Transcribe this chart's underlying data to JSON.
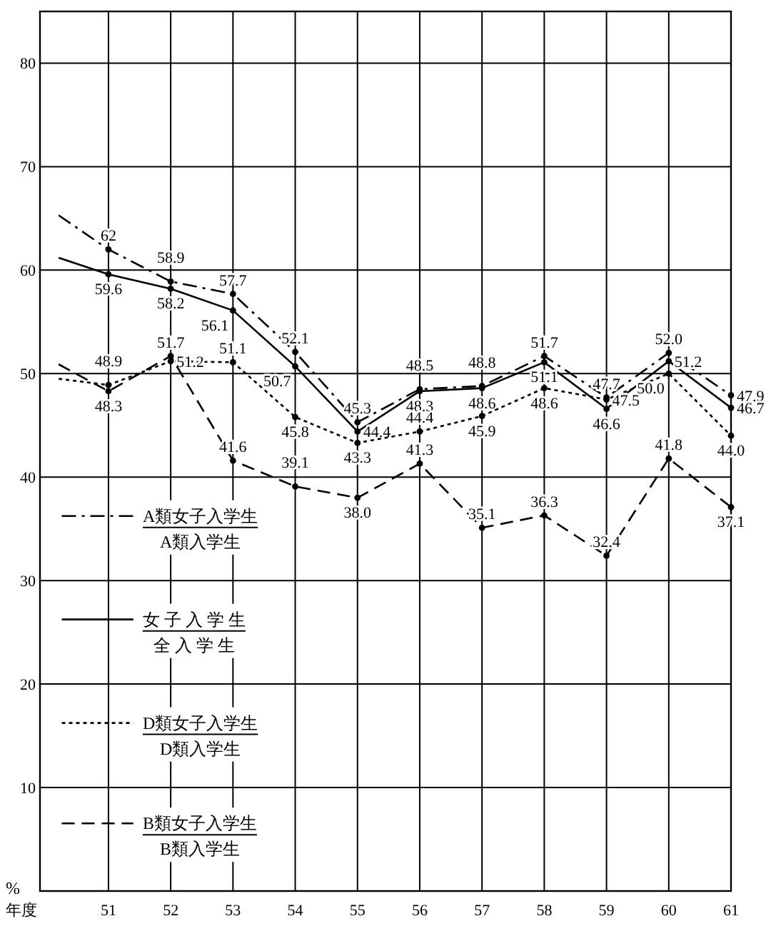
{
  "chart_data": {
    "type": "line",
    "xlabel": "年度",
    "ylabel": "%",
    "xlim": [
      49.9,
      61
    ],
    "xticks": [
      51,
      52,
      53,
      54,
      55,
      56,
      57,
      58,
      59,
      60,
      61
    ],
    "ylim": [
      0,
      85
    ],
    "yticks": [
      10,
      20,
      30,
      40,
      50,
      60,
      70,
      80
    ],
    "grid": true,
    "legend": "left",
    "marker": "circle",
    "annotations": [
      "A類入学生",
      "全 入 学 生",
      "D類入学生",
      "B類入学生"
    ],
    "x": [
      50.2,
      51,
      52,
      53,
      54,
      55,
      56,
      57,
      58,
      59,
      60,
      61
    ],
    "series": [
      {
        "name": "A類女子入学生",
        "color": "#000000",
        "line_style": "dashdot",
        "values": [
          65.3,
          62,
          58.9,
          57.7,
          52.1,
          45.3,
          48.5,
          48.8,
          51.7,
          47.7,
          52.0,
          47.9
        ],
        "value_labels": [
          null,
          "62",
          "58.9",
          "57.7",
          "52.1",
          "45.3",
          "48.5",
          "48.8",
          "51.7",
          "47.7",
          "52.0",
          "47.9"
        ]
      },
      {
        "name": "女 子 入 学 生",
        "color": "#000000",
        "line_style": "solid",
        "values": [
          61.2,
          59.6,
          58.2,
          56.1,
          50.7,
          44.4,
          48.3,
          48.6,
          51.1,
          46.6,
          51.2,
          46.7
        ],
        "value_labels": [
          null,
          "59.6",
          "58.2",
          "56.1",
          "50.7",
          "44.4",
          "48.3",
          "48.6",
          "51.1",
          "46.6",
          "51.2",
          "46.7"
        ]
      },
      {
        "name": "D類女子入学生",
        "color": "#000000",
        "line_style": "dotted",
        "values": [
          49.5,
          48.9,
          51.2,
          51.1,
          45.8,
          43.3,
          44.4,
          45.9,
          48.6,
          47.5,
          50.0,
          44.0
        ],
        "value_labels": [
          null,
          "48.9",
          "51.2",
          "51.1",
          "45.8",
          "43.3",
          "44.4",
          "45.9",
          "48.6",
          "47.5",
          "50.0",
          "44.0"
        ]
      },
      {
        "name": "B類女子入学生",
        "color": "#000000",
        "line_style": "dashed",
        "values": [
          50.9,
          48.3,
          51.7,
          41.6,
          39.1,
          38.0,
          41.3,
          35.1,
          36.3,
          32.4,
          41.8,
          37.1
        ],
        "value_labels": [
          null,
          "48.3",
          "51.7",
          "41.6",
          "39.1",
          "38.0",
          "41.3",
          "35.1",
          "36.3",
          "32.4",
          "41.8",
          "37.1"
        ]
      }
    ]
  }
}
